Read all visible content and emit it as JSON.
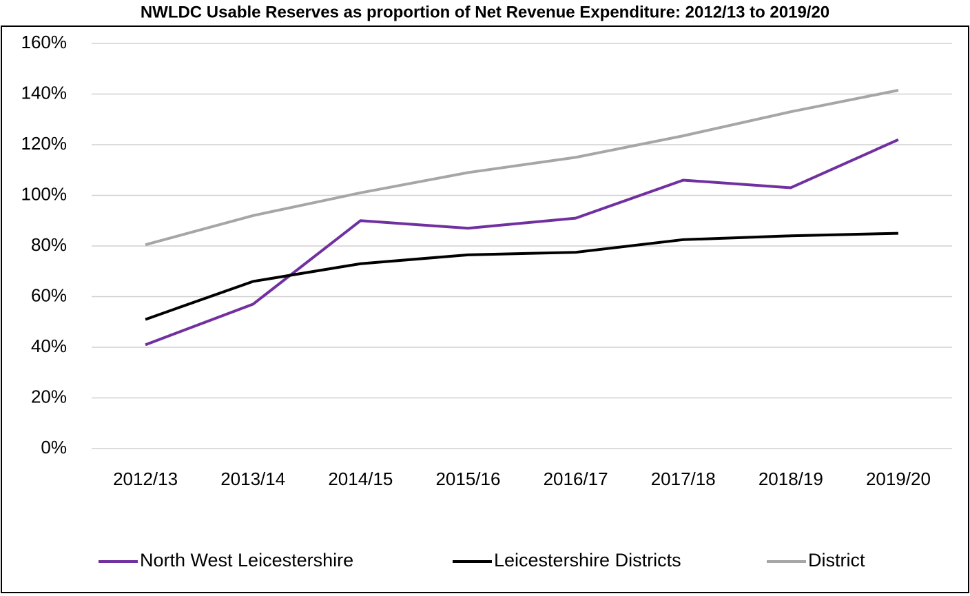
{
  "chart_data": {
    "type": "line",
    "title": "NWLDC Usable Reserves as proportion of Net Revenue Expenditure: 2012/13 to 2019/20",
    "categories": [
      "2012/13",
      "2013/14",
      "2014/15",
      "2015/16",
      "2016/17",
      "2017/18",
      "2018/19",
      "2019/20"
    ],
    "series": [
      {
        "name": "North West Leicestershire",
        "color": "#7030a0",
        "values": [
          41,
          57,
          90,
          87,
          91,
          106,
          103,
          122
        ]
      },
      {
        "name": "Leicestershire Districts",
        "color": "#000000",
        "values": [
          51,
          66,
          73,
          76.5,
          77.5,
          82.5,
          84,
          85
        ]
      },
      {
        "name": "District",
        "color": "#a6a6a6",
        "values": [
          80.5,
          92,
          101,
          109,
          115,
          123.5,
          133,
          141.5
        ]
      }
    ],
    "ylim": [
      0,
      160
    ],
    "yticks": [
      {
        "value": 0,
        "label": "0%"
      },
      {
        "value": 20,
        "label": "20%"
      },
      {
        "value": 40,
        "label": "40%"
      },
      {
        "value": 60,
        "label": "60%"
      },
      {
        "value": 80,
        "label": "80%"
      },
      {
        "value": 100,
        "label": "100%"
      },
      {
        "value": 120,
        "label": "120%"
      },
      {
        "value": 140,
        "label": "140%"
      },
      {
        "value": 160,
        "label": "160%"
      }
    ],
    "grid": true,
    "legend": "bottom"
  }
}
